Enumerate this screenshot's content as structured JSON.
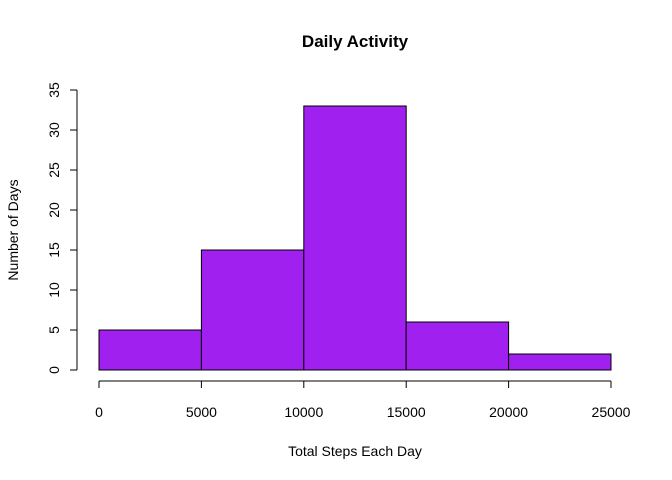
{
  "chart_data": {
    "type": "bar",
    "title": "Daily Activity",
    "xlabel": "Total Steps Each Day",
    "ylabel": "Number of Days",
    "bins": [
      {
        "from": 0,
        "to": 5000,
        "count": 5
      },
      {
        "from": 5000,
        "to": 10000,
        "count": 15
      },
      {
        "from": 10000,
        "to": 15000,
        "count": 33
      },
      {
        "from": 15000,
        "to": 20000,
        "count": 6
      },
      {
        "from": 20000,
        "to": 25000,
        "count": 2
      }
    ],
    "xlim": [
      0,
      25000
    ],
    "ylim": [
      0,
      35
    ],
    "xticks": [
      0,
      5000,
      10000,
      15000,
      20000,
      25000
    ],
    "yticks": [
      0,
      5,
      10,
      15,
      20,
      25,
      30,
      35
    ],
    "grid": false,
    "bar_color": "#A020F0"
  }
}
